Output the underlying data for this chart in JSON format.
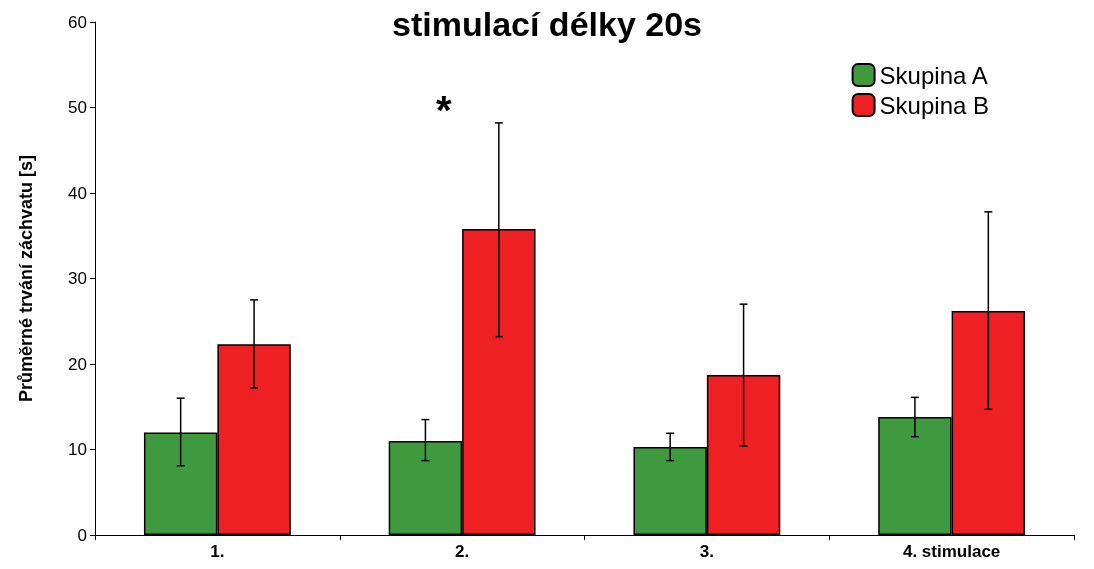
{
  "chart_data": {
    "type": "bar",
    "title": "stimulací délky 20s",
    "ylabel": "Průměrné trvání záchvatu [s]",
    "categories": [
      "1.",
      "2.",
      "3.",
      "4. stimulace"
    ],
    "series": [
      {
        "name": "Skupina A",
        "color": "#3f9a3f",
        "values": [
          12.0,
          11.0,
          10.3,
          13.8
        ],
        "errors": [
          [
            8.1,
            16.0
          ],
          [
            8.7,
            13.5
          ],
          [
            8.7,
            11.9
          ],
          [
            11.5,
            16.1
          ]
        ]
      },
      {
        "name": "Skupina B",
        "color": "#ee2024",
        "values": [
          22.3,
          35.8,
          18.7,
          26.2
        ],
        "errors": [
          [
            17.2,
            27.5
          ],
          [
            23.2,
            48.2
          ],
          [
            10.4,
            27.0
          ],
          [
            14.7,
            37.8
          ]
        ]
      }
    ],
    "ylim": [
      0,
      60
    ],
    "yticks": [
      0,
      10,
      20,
      30,
      40,
      50,
      60
    ],
    "grid": false,
    "legend": "top right",
    "annotations": [
      "*"
    ]
  }
}
